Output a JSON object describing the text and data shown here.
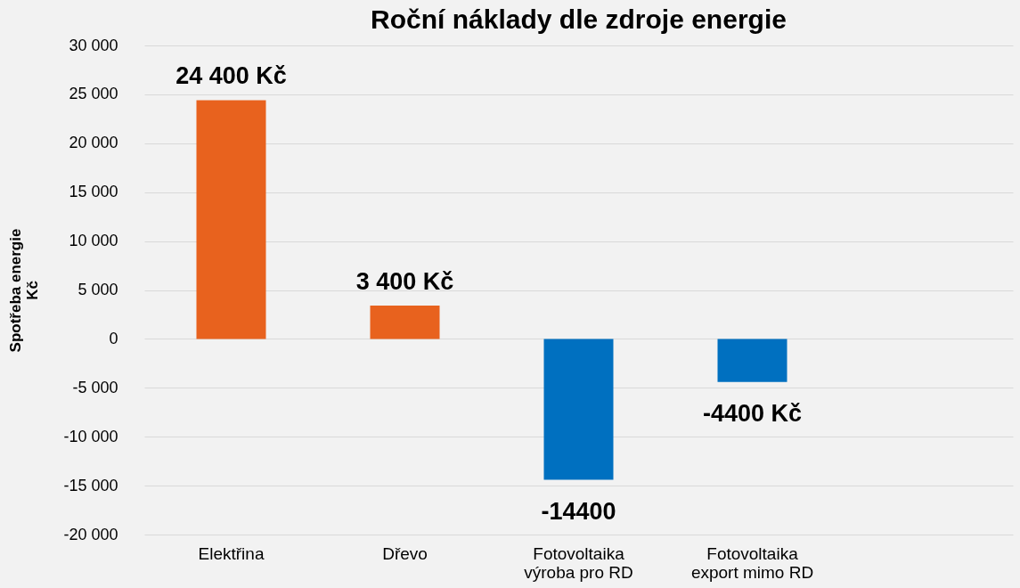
{
  "chart_data": {
    "type": "bar",
    "title": "Roční náklady dle zdroje energie",
    "ylabel": "Spotřeba energie\nKč",
    "categories": [
      "Elektřina",
      "Dřevo",
      "Fotovoltaika\nvýroba pro RD",
      "Fotovoltaika\nexport mimo RD",
      null
    ],
    "values": [
      24400,
      3400,
      -14400,
      -4400,
      null
    ],
    "colors": [
      "#e8621e",
      "#e8621e",
      "#0070c0",
      "#0070c0",
      null
    ],
    "value_labels": [
      "24 400 Kč",
      "3 400 Kč",
      "-14400",
      "-4400 Kč",
      null
    ],
    "ylim": [
      -20000,
      30000
    ],
    "yticks": [
      {
        "value": -20000,
        "label": "-20 000"
      },
      {
        "value": -15000,
        "label": "-15 000"
      },
      {
        "value": -10000,
        "label": "-10 000"
      },
      {
        "value": -5000,
        "label": "-5 000"
      },
      0,
      {
        "value": 5000,
        "label": "5 000"
      },
      {
        "value": 10000,
        "label": "10 000"
      },
      {
        "value": 15000,
        "label": "15 000"
      },
      {
        "value": 20000,
        "label": "20 000"
      },
      {
        "value": 25000,
        "label": "25 000"
      },
      {
        "value": 30000,
        "label": "30 000"
      }
    ],
    "grid": "y"
  }
}
